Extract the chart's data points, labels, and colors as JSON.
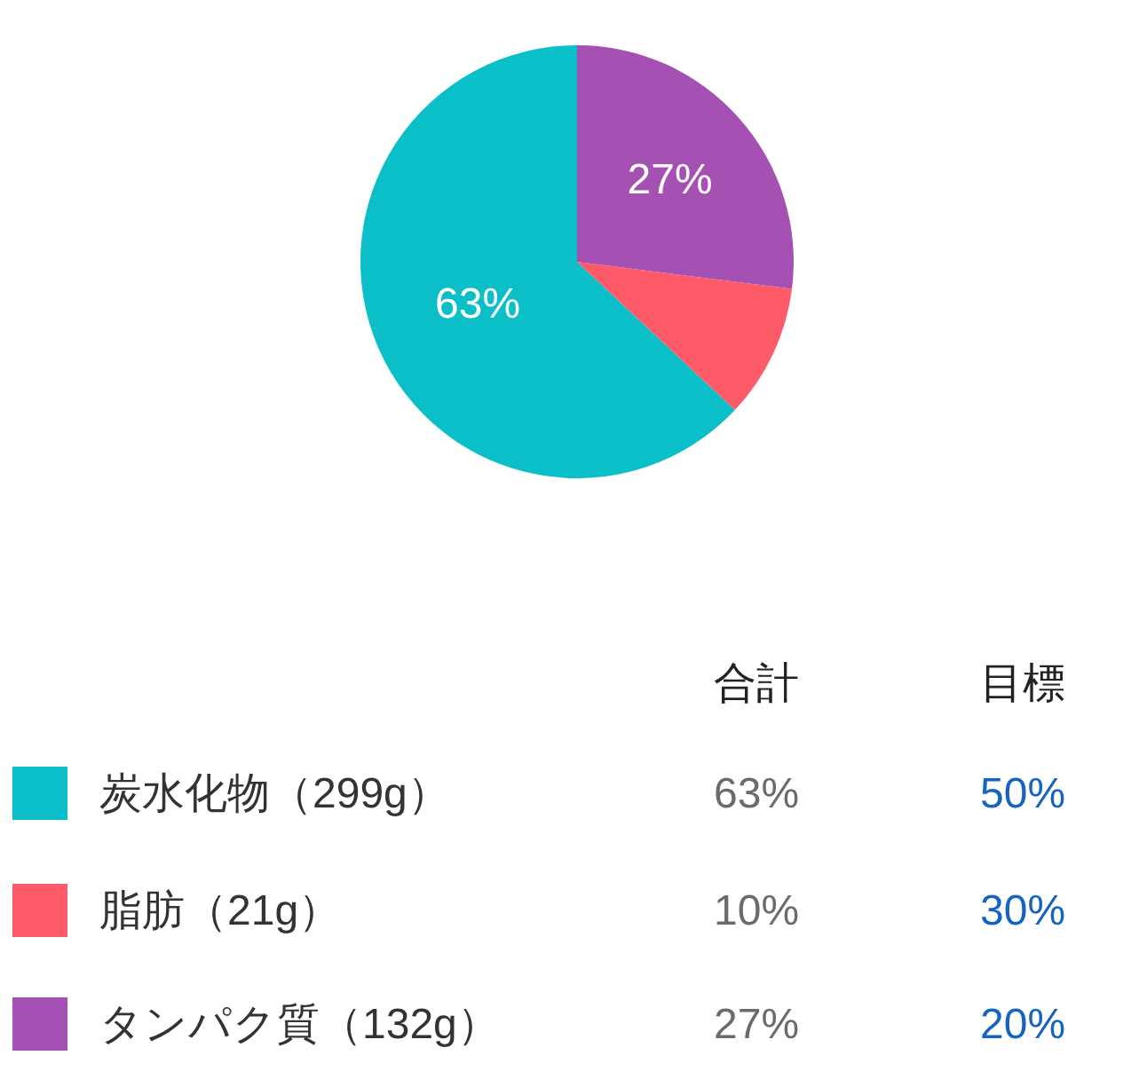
{
  "chart_data": {
    "type": "pie",
    "categories": [
      "炭水化物（299g）",
      "脂肪（21g）",
      "タンパク質（132g）"
    ],
    "values": [
      63,
      10,
      27
    ],
    "colors": [
      "#0bbfc8",
      "#ff5a68",
      "#a451b3"
    ],
    "value_labels": [
      "63%",
      null,
      "27%"
    ],
    "legend": "bottom",
    "annotations": [
      "合計",
      "目標",
      "63%",
      "50%",
      "10%",
      "30%",
      "27%",
      "20%"
    ]
  }
}
